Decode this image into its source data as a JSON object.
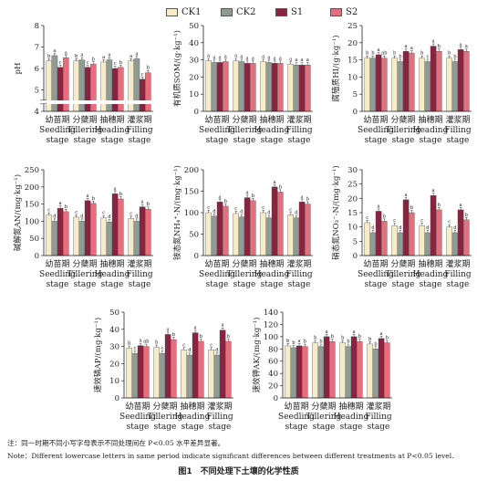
{
  "legend": [
    {
      "name": "CK1",
      "color": "#f7ecc8"
    },
    {
      "name": "CK2",
      "color": "#8f9b95"
    },
    {
      "name": "S1",
      "color": "#8a2340"
    },
    {
      "name": "S2",
      "color": "#e56f7c"
    }
  ],
  "categories": [
    {
      "cn": "幼苗期",
      "en1": "Seedling",
      "en2": "stage"
    },
    {
      "cn": "分蘖期",
      "en1": "Tillering",
      "en2": "stage"
    },
    {
      "cn": "抽穗期",
      "en1": "Heading",
      "en2": "stage"
    },
    {
      "cn": "灌浆期",
      "en1": "Filling",
      "en2": "stage"
    }
  ],
  "chart_data": [
    {
      "type": "bar",
      "ylabel": "pH",
      "ylim": [
        4,
        8
      ],
      "yticks": [
        4,
        5,
        6,
        7,
        8
      ],
      "axis_break": true,
      "categories": [
        "幼苗期",
        "分蘖期",
        "抽穗期",
        "灌浆期"
      ],
      "series": [
        {
          "name": "CK1",
          "values": [
            6.35,
            6.35,
            6.3,
            6.35
          ],
          "letters": [
            "b",
            "b",
            "a",
            "a"
          ]
        },
        {
          "name": "CK2",
          "values": [
            6.6,
            6.4,
            6.4,
            6.45
          ],
          "letters": [
            "a",
            "a",
            "a",
            "a"
          ]
        },
        {
          "name": "S1",
          "values": [
            6.05,
            6.05,
            6.0,
            5.5
          ],
          "letters": [
            "c",
            "c",
            "c",
            "c"
          ]
        },
        {
          "name": "S2",
          "values": [
            6.5,
            6.2,
            6.05,
            5.8
          ],
          "letters": [
            "a",
            "b",
            "b",
            "b"
          ]
        }
      ]
    },
    {
      "type": "bar",
      "ylabel": "有机质SOM/(g·kg⁻¹)",
      "ylim": [
        0,
        50
      ],
      "yticks": [
        0,
        10,
        20,
        30,
        40,
        50
      ],
      "categories": [
        "幼苗期",
        "分蘖期",
        "抽穗期",
        "灌浆期"
      ],
      "series": [
        {
          "name": "CK1",
          "values": [
            29.5,
            29.5,
            29,
            27.5
          ],
          "letters": [
            "a",
            "a",
            "a",
            "a"
          ]
        },
        {
          "name": "CK2",
          "values": [
            28.5,
            29,
            28.5,
            27
          ],
          "letters": [
            "a",
            "a",
            "a",
            "a"
          ]
        },
        {
          "name": "S1",
          "values": [
            28.5,
            28,
            28,
            27
          ],
          "letters": [
            "a",
            "a",
            "a",
            "a"
          ]
        },
        {
          "name": "S2",
          "values": [
            29,
            28,
            28,
            27
          ],
          "letters": [
            "a",
            "a",
            "a",
            "a"
          ]
        }
      ]
    },
    {
      "type": "bar",
      "ylabel": "腐殖质HI/(g·kg⁻¹)",
      "ylim": [
        0,
        25
      ],
      "yticks": [
        0,
        5,
        10,
        15,
        20,
        25
      ],
      "categories": [
        "幼苗期",
        "分蘖期",
        "抽穗期",
        "灌浆期"
      ],
      "series": [
        {
          "name": "CK1",
          "values": [
            15.5,
            15.5,
            15.5,
            15.5
          ],
          "letters": [
            "b",
            "b",
            "b",
            "b"
          ]
        },
        {
          "name": "CK2",
          "values": [
            15.5,
            14.5,
            14.5,
            14.5
          ],
          "letters": [
            "b",
            "b",
            "c",
            "b"
          ]
        },
        {
          "name": "S1",
          "values": [
            16.5,
            17.5,
            19,
            18
          ],
          "letters": [
            "a",
            "a",
            "a",
            "a"
          ]
        },
        {
          "name": "S2",
          "values": [
            15.5,
            17,
            17.5,
            17.5
          ],
          "letters": [
            "ab",
            "a",
            "b",
            "a"
          ]
        }
      ]
    },
    {
      "type": "bar",
      "ylabel": "碱解氮AN/(mg·kg⁻¹)",
      "ylim": [
        0,
        250
      ],
      "yticks": [
        0,
        50,
        100,
        150,
        200,
        250
      ],
      "categories": [
        "幼苗期",
        "分蘖期",
        "抽穗期",
        "灌浆期"
      ],
      "series": [
        {
          "name": "CK1",
          "values": [
            118,
            112,
            110,
            108
          ],
          "letters": [
            "c",
            "c",
            "c",
            "c"
          ]
        },
        {
          "name": "CK2",
          "values": [
            100,
            100,
            98,
            100
          ],
          "letters": [
            "d",
            "d",
            "d",
            "d"
          ]
        },
        {
          "name": "S1",
          "values": [
            138,
            160,
            180,
            142
          ],
          "letters": [
            "a",
            "a",
            "a",
            "a"
          ]
        },
        {
          "name": "S2",
          "values": [
            128,
            152,
            165,
            135
          ],
          "letters": [
            "b",
            "b",
            "b",
            "b"
          ]
        }
      ]
    },
    {
      "type": "bar",
      "ylabel": "铵态氮NH₄⁺-N/(mg·kg⁻¹)",
      "ylim": [
        0,
        200
      ],
      "yticks": [
        0,
        50,
        100,
        150,
        200
      ],
      "categories": [
        "幼苗期",
        "分蘖期",
        "抽穗期",
        "灌浆期"
      ],
      "series": [
        {
          "name": "CK1",
          "values": [
            100,
            98,
            100,
            95
          ],
          "letters": [
            "c",
            "c",
            "c",
            "c"
          ]
        },
        {
          "name": "CK2",
          "values": [
            92,
            90,
            88,
            88
          ],
          "letters": [
            "d",
            "d",
            "d",
            "d"
          ]
        },
        {
          "name": "S1",
          "values": [
            125,
            135,
            160,
            125
          ],
          "letters": [
            "a",
            "a",
            "a",
            "a"
          ]
        },
        {
          "name": "S2",
          "values": [
            115,
            128,
            148,
            120
          ],
          "letters": [
            "b",
            "b",
            "b",
            "b"
          ]
        }
      ]
    },
    {
      "type": "bar",
      "ylabel": "硝态氮NO₃⁻-N/(mg·kg⁻¹)",
      "ylim": [
        0,
        30
      ],
      "yticks": [
        0,
        5,
        10,
        15,
        20,
        25,
        30
      ],
      "categories": [
        "幼苗期",
        "分蘖期",
        "抽穗期",
        "灌浆期"
      ],
      "series": [
        {
          "name": "CK1",
          "values": [
            11.5,
            10.5,
            10.5,
            10
          ],
          "letters": [
            "c",
            "c",
            "c",
            "c"
          ]
        },
        {
          "name": "CK2",
          "values": [
            8,
            8,
            8,
            8
          ],
          "letters": [
            "d",
            "d",
            "d",
            "d"
          ]
        },
        {
          "name": "S1",
          "values": [
            15.5,
            19.5,
            21,
            16
          ],
          "letters": [
            "a",
            "a",
            "a",
            "a"
          ]
        },
        {
          "name": "S2",
          "values": [
            12,
            15,
            16,
            12.5
          ],
          "letters": [
            "b",
            "b",
            "b",
            "b"
          ]
        }
      ]
    },
    {
      "type": "bar",
      "ylabel": "速效磷AP/(mg·kg⁻¹)",
      "ylim": [
        0,
        50
      ],
      "yticks": [
        0,
        10,
        20,
        30,
        40,
        50
      ],
      "categories": [
        "幼苗期",
        "分蘖期",
        "抽穗期",
        "灌浆期"
      ],
      "series": [
        {
          "name": "CK1",
          "values": [
            29,
            29.5,
            28,
            28
          ],
          "letters": [
            "b",
            "b",
            "c",
            "c"
          ]
        },
        {
          "name": "CK2",
          "values": [
            26,
            26,
            25,
            25
          ],
          "letters": [
            "c",
            "c",
            "d",
            "d"
          ]
        },
        {
          "name": "S1",
          "values": [
            30.5,
            37,
            38,
            39.5
          ],
          "letters": [
            "a",
            "a",
            "a",
            "a"
          ]
        },
        {
          "name": "S2",
          "values": [
            30,
            34,
            33,
            33
          ],
          "letters": [
            "ab",
            "b",
            "b",
            "b"
          ]
        }
      ]
    },
    {
      "type": "bar",
      "ylabel": "速效钾AK/(mg·kg⁻¹)",
      "ylim": [
        0,
        140
      ],
      "yticks": [
        0,
        20,
        40,
        60,
        80,
        100,
        120,
        140
      ],
      "categories": [
        "幼苗期",
        "分蘖期",
        "抽穗期",
        "灌浆期"
      ],
      "series": [
        {
          "name": "CK1",
          "values": [
            85,
            90,
            90,
            88
          ],
          "letters": [
            "b",
            "b",
            "b",
            "b"
          ]
        },
        {
          "name": "CK2",
          "values": [
            82,
            84,
            84,
            80
          ],
          "letters": [
            "b",
            "b",
            "b",
            "b"
          ]
        },
        {
          "name": "S1",
          "values": [
            85,
            100,
            100,
            97
          ],
          "letters": [
            "a",
            "a",
            "a",
            "a"
          ]
        },
        {
          "name": "S2",
          "values": [
            84,
            92,
            92,
            90
          ],
          "letters": [
            "b",
            "b",
            "b",
            "b"
          ]
        }
      ]
    }
  ],
  "note_cn": "注：同一时期不同小写字母表示不同处理间在 P<0.05 水平差异显著。",
  "note_en": "Note：Different lowercase letters in same period indicate significant differences between different treatments at P<0.05 level.",
  "caption": "图1　不同处理下土壤的化学性质"
}
